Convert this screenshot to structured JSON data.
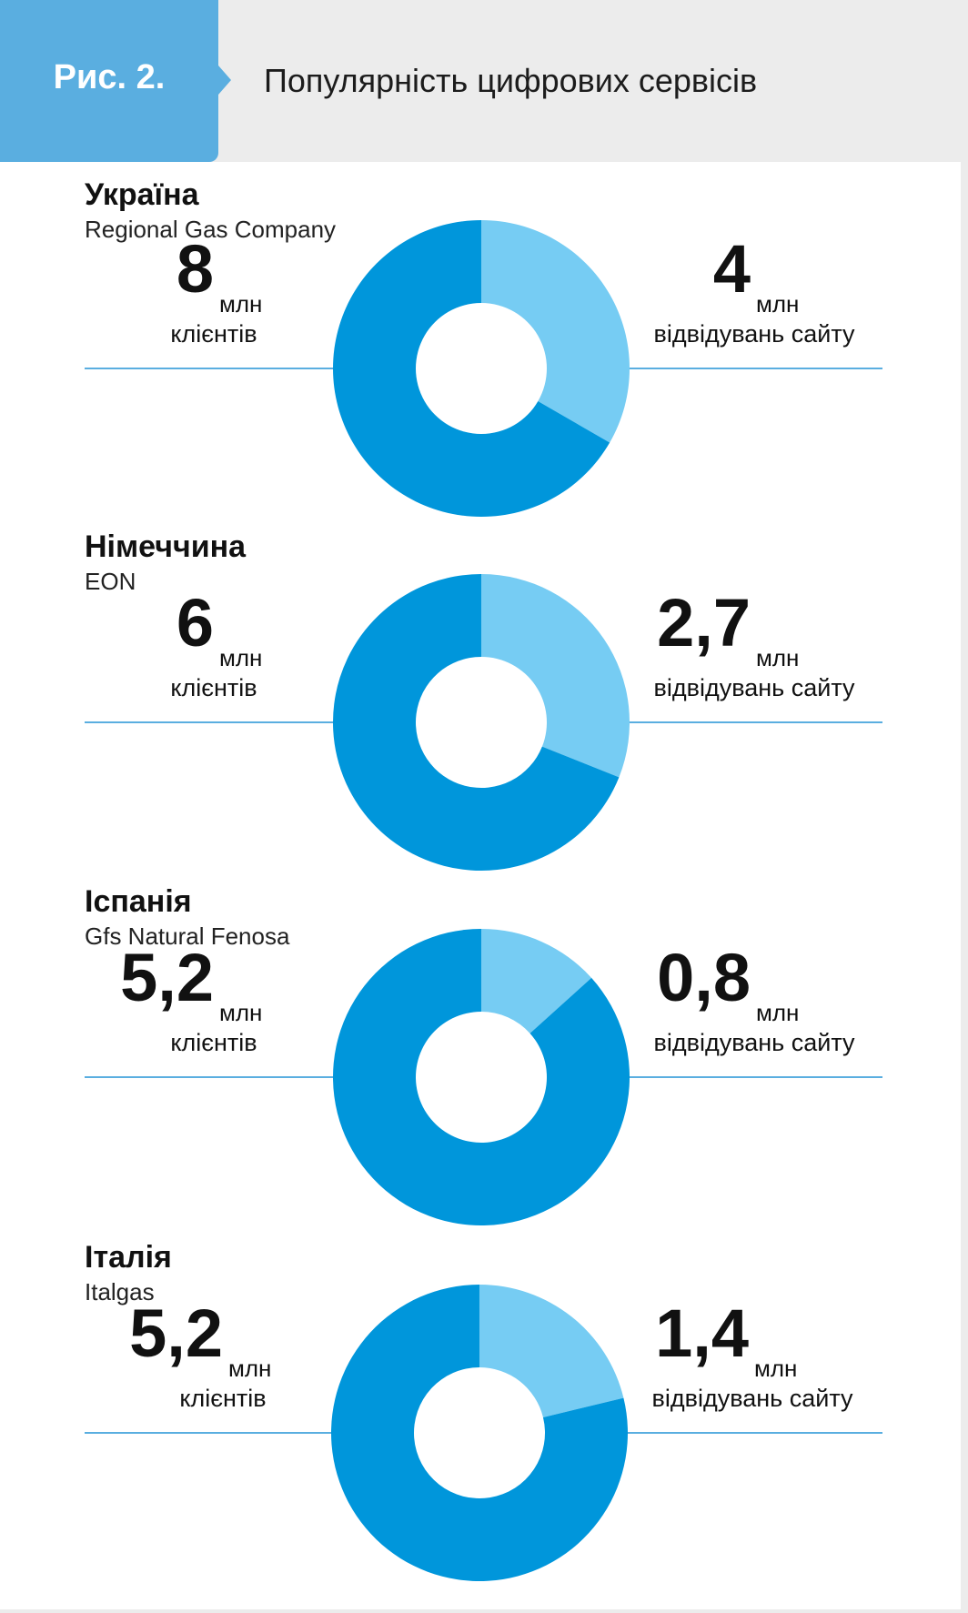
{
  "figure": {
    "label": "Рис. 2.",
    "title": "Популярність цифрових сервісів"
  },
  "colors": {
    "clients": "#0096db",
    "visits": "#76ccf3",
    "line": "#5aaee0",
    "header_tab": "#5aaee0",
    "header_band": "#ececec"
  },
  "chart_data": [
    {
      "type": "pie",
      "country": "Україна",
      "company": "Regional Gas Company",
      "clients": {
        "value": "8",
        "unit": "млн",
        "label": "клієнтів"
      },
      "visits": {
        "value": "4",
        "unit": "млн",
        "label": "відвідувань сайту"
      },
      "values": [
        8,
        4
      ]
    },
    {
      "type": "pie",
      "country": "Німеччина",
      "company": "EON",
      "clients": {
        "value": "6",
        "unit": "млн",
        "label": "клієнтів"
      },
      "visits": {
        "value": "2,7",
        "unit": "млн",
        "label": "відвідувань сайту"
      },
      "values": [
        6,
        2.7
      ]
    },
    {
      "type": "pie",
      "country": "Іспанія",
      "company": "Gfs Natural Fenosa",
      "clients": {
        "value": "5,2",
        "unit": "млн",
        "label": "клієнтів"
      },
      "visits": {
        "value": "0,8",
        "unit": "млн",
        "label": "відвідувань сайту"
      },
      "values": [
        5.2,
        0.8
      ]
    },
    {
      "type": "pie",
      "country": "Італія",
      "company": "Italgas",
      "clients": {
        "value": "5,2",
        "unit": "млн",
        "label": "клієнтів"
      },
      "visits": {
        "value": "1,4",
        "unit": "млн",
        "label": "відвідувань сайту"
      },
      "values": [
        5.2,
        1.4
      ]
    }
  ]
}
